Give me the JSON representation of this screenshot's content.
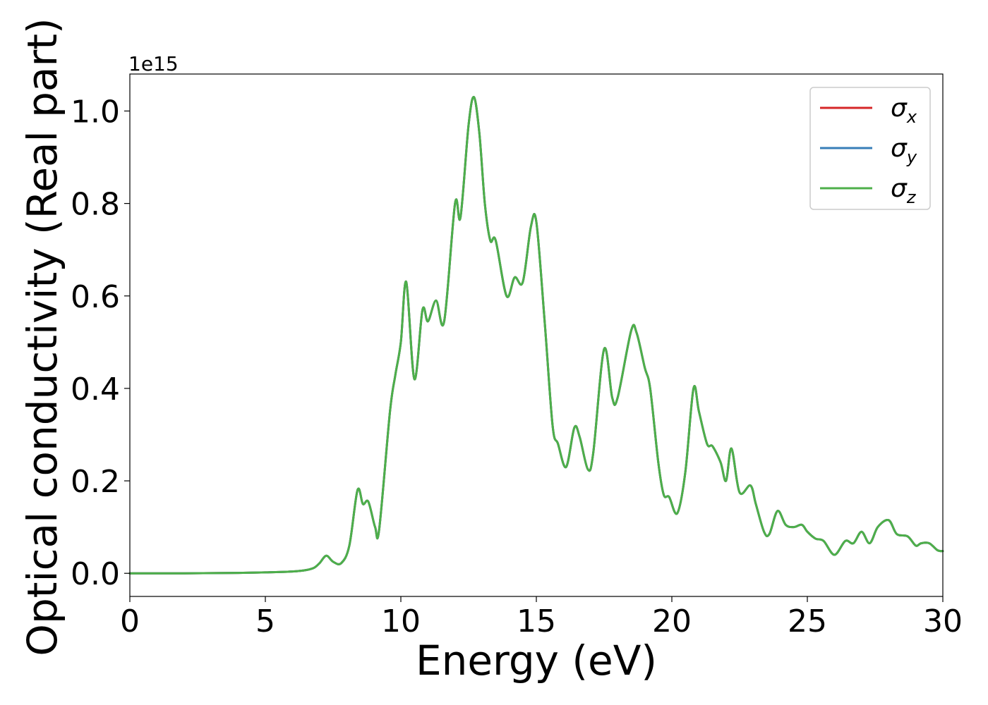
{
  "chart_data": {
    "type": "line",
    "xlabel": "Energy (eV)",
    "ylabel": "Optical conductivity (Real part)",
    "y_offset_label": "1e15",
    "xlim": [
      0,
      30
    ],
    "ylim": [
      -0.05,
      1.08
    ],
    "x_ticks": [
      "0",
      "5",
      "10",
      "15",
      "20",
      "25",
      "30"
    ],
    "y_ticks": [
      "0.0",
      "0.2",
      "0.4",
      "0.6",
      "0.8",
      "1.0"
    ],
    "grid": false,
    "legend_position": "top-right",
    "series": [
      {
        "name": "σx",
        "symbol": "σ",
        "subscript": "x",
        "color": "#d62728"
      },
      {
        "name": "σy",
        "symbol": "σ",
        "subscript": "y",
        "color": "#377eb8"
      },
      {
        "name": "σz",
        "symbol": "σ",
        "subscript": "z",
        "color": "#4daf4a"
      }
    ],
    "x": [
      0,
      2,
      4,
      5,
      6,
      6.5,
      6.8,
      7.0,
      7.25,
      7.5,
      7.8,
      8.1,
      8.4,
      8.6,
      8.8,
      9.05,
      9.2,
      9.6,
      9.8,
      10.0,
      10.2,
      10.5,
      10.8,
      11.0,
      11.3,
      11.6,
      12.0,
      12.2,
      12.5,
      12.7,
      12.9,
      13.1,
      13.3,
      13.5,
      13.9,
      14.2,
      14.5,
      14.8,
      15.0,
      15.3,
      15.6,
      15.8,
      16.1,
      16.4,
      16.6,
      16.9,
      17.1,
      17.5,
      17.8,
      18.0,
      18.5,
      18.7,
      19.0,
      19.2,
      19.5,
      19.7,
      19.9,
      20.2,
      20.5,
      20.8,
      21.0,
      21.3,
      21.5,
      21.8,
      22.0,
      22.2,
      22.5,
      22.9,
      23.1,
      23.4,
      23.6,
      23.9,
      24.2,
      24.5,
      24.8,
      25.0,
      25.3,
      25.6,
      26.0,
      26.4,
      26.7,
      27.0,
      27.3,
      27.6,
      28.0,
      28.3,
      28.7,
      29.0,
      29.2,
      29.5,
      29.8,
      30.0
    ],
    "y": [
      0,
      0,
      0.001,
      0.002,
      0.004,
      0.007,
      0.012,
      0.022,
      0.038,
      0.025,
      0.022,
      0.06,
      0.18,
      0.15,
      0.155,
      0.1,
      0.095,
      0.35,
      0.43,
      0.5,
      0.63,
      0.42,
      0.57,
      0.545,
      0.59,
      0.545,
      0.8,
      0.77,
      0.97,
      1.03,
      0.95,
      0.8,
      0.72,
      0.72,
      0.6,
      0.64,
      0.63,
      0.75,
      0.76,
      0.55,
      0.32,
      0.28,
      0.23,
      0.315,
      0.295,
      0.225,
      0.26,
      0.485,
      0.38,
      0.38,
      0.525,
      0.52,
      0.445,
      0.4,
      0.24,
      0.17,
      0.165,
      0.13,
      0.22,
      0.4,
      0.35,
      0.28,
      0.275,
      0.24,
      0.2,
      0.27,
      0.175,
      0.19,
      0.15,
      0.09,
      0.085,
      0.135,
      0.105,
      0.1,
      0.105,
      0.09,
      0.075,
      0.07,
      0.04,
      0.07,
      0.065,
      0.09,
      0.065,
      0.1,
      0.115,
      0.085,
      0.08,
      0.06,
      0.065,
      0.065,
      0.05,
      0.048
    ]
  }
}
